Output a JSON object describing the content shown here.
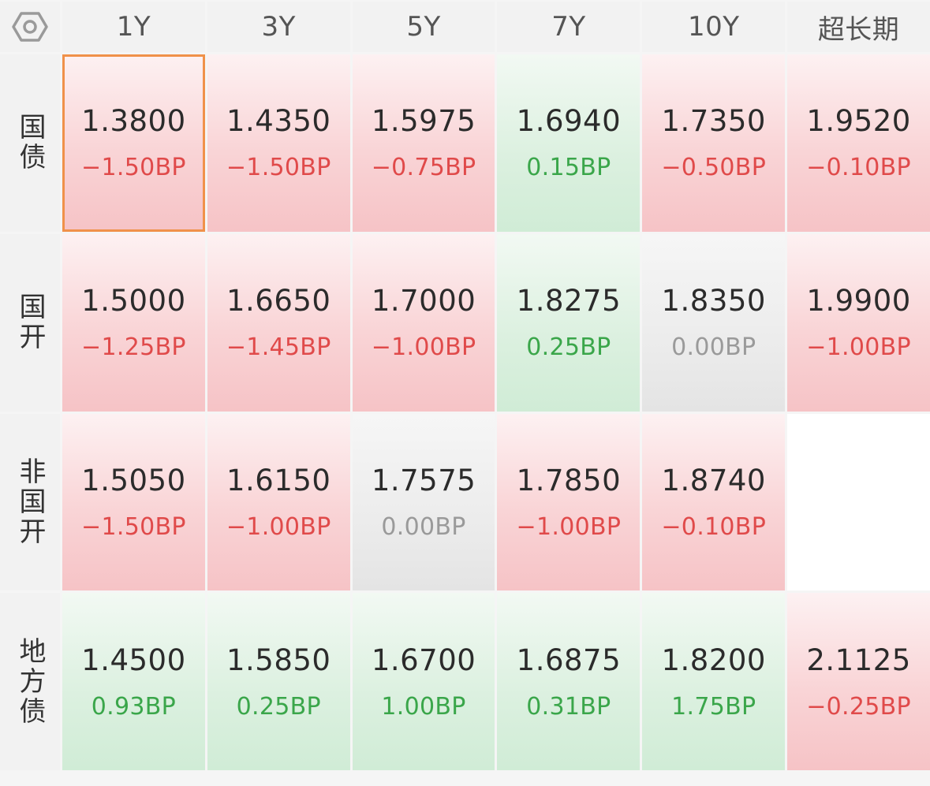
{
  "header": {
    "settings_icon": "hexagon-settings-icon",
    "tenors": [
      "1Y",
      "3Y",
      "5Y",
      "7Y",
      "10Y",
      "超长期"
    ]
  },
  "colors": {
    "up_text": "#e04a4a",
    "down_text": "#3aa64a",
    "flat_text": "#9a9a9a",
    "selected_border": "#f0914a"
  },
  "rows": [
    {
      "label": "国债",
      "cells": [
        {
          "rate": "1.3800",
          "change": "−1.50BP",
          "trend": "up",
          "selected": true
        },
        {
          "rate": "1.4350",
          "change": "−1.50BP",
          "trend": "up"
        },
        {
          "rate": "1.5975",
          "change": "−0.75BP",
          "trend": "up"
        },
        {
          "rate": "1.6940",
          "change": "0.15BP",
          "trend": "down"
        },
        {
          "rate": "1.7350",
          "change": "−0.50BP",
          "trend": "up"
        },
        {
          "rate": "1.9520",
          "change": "−0.10BP",
          "trend": "up"
        }
      ]
    },
    {
      "label": "国开",
      "cells": [
        {
          "rate": "1.5000",
          "change": "−1.25BP",
          "trend": "up"
        },
        {
          "rate": "1.6650",
          "change": "−1.45BP",
          "trend": "up"
        },
        {
          "rate": "1.7000",
          "change": "−1.00BP",
          "trend": "up"
        },
        {
          "rate": "1.8275",
          "change": "0.25BP",
          "trend": "down"
        },
        {
          "rate": "1.8350",
          "change": "0.00BP",
          "trend": "flat"
        },
        {
          "rate": "1.9900",
          "change": "−1.00BP",
          "trend": "up"
        }
      ]
    },
    {
      "label": "非国开",
      "cells": [
        {
          "rate": "1.5050",
          "change": "−1.50BP",
          "trend": "up"
        },
        {
          "rate": "1.6150",
          "change": "−1.00BP",
          "trend": "up"
        },
        {
          "rate": "1.7575",
          "change": "0.00BP",
          "trend": "flat"
        },
        {
          "rate": "1.7850",
          "change": "−1.00BP",
          "trend": "up"
        },
        {
          "rate": "1.8740",
          "change": "−0.10BP",
          "trend": "up"
        },
        null
      ]
    },
    {
      "label": "地方债",
      "cells": [
        {
          "rate": "1.4500",
          "change": "0.93BP",
          "trend": "down"
        },
        {
          "rate": "1.5850",
          "change": "0.25BP",
          "trend": "down"
        },
        {
          "rate": "1.6700",
          "change": "1.00BP",
          "trend": "down"
        },
        {
          "rate": "1.6875",
          "change": "0.31BP",
          "trend": "down"
        },
        {
          "rate": "1.8200",
          "change": "1.75BP",
          "trend": "down"
        },
        {
          "rate": "2.1125",
          "change": "−0.25BP",
          "trend": "up"
        }
      ]
    }
  ]
}
